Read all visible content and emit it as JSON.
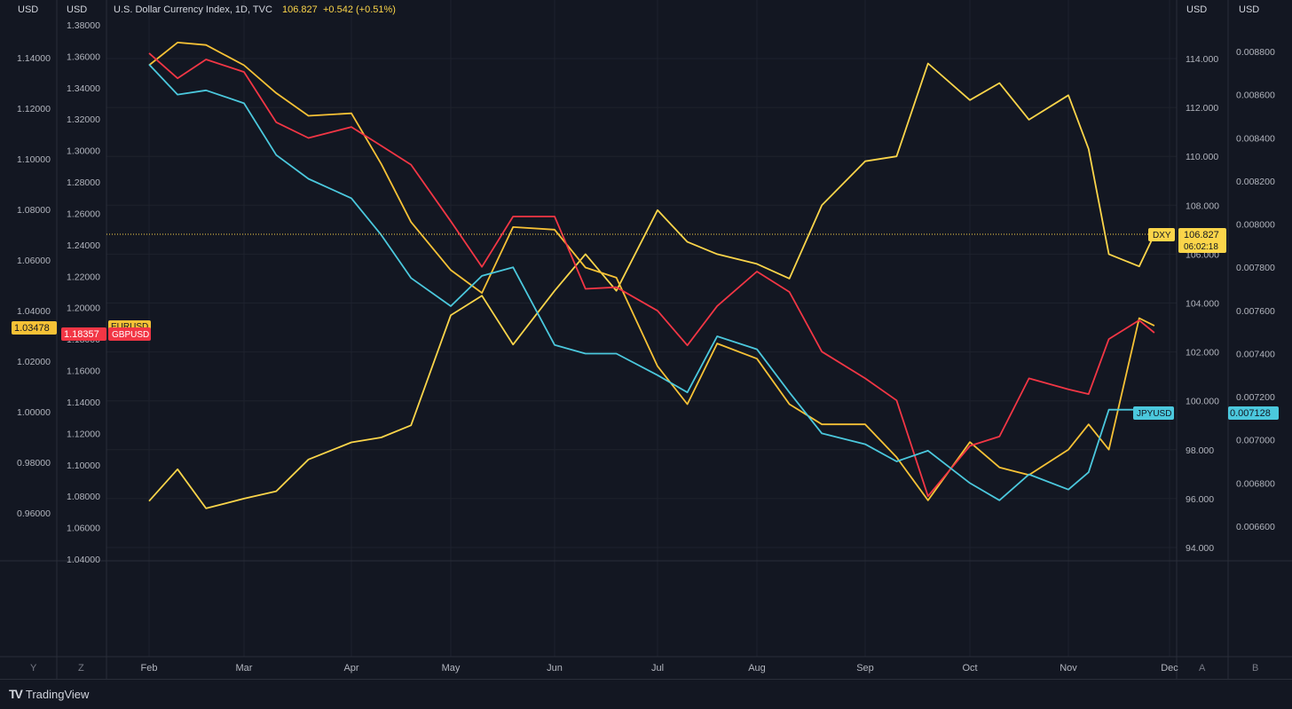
{
  "header": {
    "axis_unit_1": "USD",
    "axis_unit_2": "USD",
    "axis_unit_3": "USD",
    "axis_unit_4": "USD",
    "title": "U.S. Dollar Currency Index, 1D, TVC",
    "last": "106.827",
    "change": "+0.542 (+0.51%)"
  },
  "badges": {
    "eurusd_value": "1.03478",
    "eurusd_name": "EURUSD",
    "gbpusd_value": "1.18357",
    "gbpusd_name": "GBPUSD",
    "dxy_name": "DXY",
    "dxy_value": "106.827",
    "dxy_countdown": "06:02:18",
    "jpyusd_name": "JPYUSD",
    "jpyusd_value": "0.007128"
  },
  "scale_buttons": {
    "y": "Y",
    "z": "Z",
    "a": "A",
    "b": "B"
  },
  "footer": {
    "brand": "TradingView"
  },
  "colors": {
    "background": "#131722",
    "grid": "#1e222d",
    "dxy": "#fbd54a",
    "eurusd": "#f7c236",
    "gbpusd": "#f23645",
    "jpyusd": "#4bc8dd"
  },
  "chart_data": {
    "type": "line",
    "x_labels": [
      "Feb",
      "Mar",
      "Apr",
      "May",
      "Jun",
      "Jul",
      "Aug",
      "Sep",
      "Oct",
      "Nov",
      "Dec"
    ],
    "axes": [
      {
        "id": "eurusd",
        "unit": "USD",
        "range": [
          0.96,
          1.14
        ],
        "ticks": [
          "1.14000",
          "1.12000",
          "1.10000",
          "1.08000",
          "1.06000",
          "1.04000",
          "1.02000",
          "1.00000",
          "0.98000",
          "0.96000"
        ]
      },
      {
        "id": "gbpusd",
        "unit": "USD",
        "range": [
          1.04,
          1.38
        ],
        "ticks": [
          "1.38000",
          "1.36000",
          "1.34000",
          "1.32000",
          "1.30000",
          "1.28000",
          "1.26000",
          "1.24000",
          "1.22000",
          "1.20000",
          "1.18000",
          "1.16000",
          "1.14000",
          "1.12000",
          "1.10000",
          "1.08000",
          "1.06000",
          "1.04000"
        ]
      },
      {
        "id": "dxy",
        "unit": "USD",
        "range": [
          94,
          114
        ],
        "ticks": [
          "114.000",
          "112.000",
          "110.000",
          "108.000",
          "106.000",
          "104.000",
          "102.000",
          "100.000",
          "98.000",
          "96.000",
          "94.000"
        ]
      },
      {
        "id": "jpyusd",
        "unit": "USD",
        "range": [
          0.0066,
          0.0088
        ],
        "ticks": [
          "0.008800",
          "0.008600",
          "0.008400",
          "0.008200",
          "0.008000",
          "0.007800",
          "0.007600",
          "0.007400",
          "0.007200",
          "0.007000",
          "0.006800",
          "0.006600"
        ]
      }
    ],
    "series": [
      {
        "name": "DXY",
        "axis": "dxy",
        "color": "#fbd54a",
        "x": [
          0,
          0.3,
          0.6,
          1,
          1.3,
          1.6,
          2,
          2.3,
          2.6,
          3,
          3.3,
          3.6,
          4,
          4.3,
          4.6,
          5,
          5.3,
          5.6,
          6,
          6.3,
          6.6,
          7,
          7.3,
          7.6,
          8,
          8.3,
          8.6,
          9,
          9.2,
          9.4,
          9.7,
          9.85
        ],
        "values": [
          95.9,
          97.2,
          95.6,
          96.0,
          96.3,
          97.6,
          98.3,
          98.5,
          99.0,
          103.5,
          104.3,
          102.3,
          104.5,
          106.0,
          104.5,
          107.8,
          106.5,
          106.0,
          105.6,
          105.0,
          108.0,
          109.8,
          110.0,
          113.8,
          112.3,
          113.0,
          111.5,
          112.5,
          110.3,
          106.0,
          105.5,
          106.8
        ]
      },
      {
        "name": "EURUSD",
        "axis": "eurusd",
        "color": "#f7c236",
        "x": [
          0,
          0.3,
          0.6,
          1,
          1.3,
          1.6,
          2,
          2.3,
          2.6,
          3,
          3.3,
          3.6,
          4,
          4.3,
          4.6,
          5,
          5.3,
          5.6,
          6,
          6.3,
          6.6,
          7,
          7.3,
          7.6,
          8,
          8.3,
          8.6,
          9,
          9.2,
          9.4,
          9.7,
          9.85
        ],
        "values": [
          1.137,
          1.146,
          1.145,
          1.137,
          1.126,
          1.117,
          1.118,
          1.098,
          1.075,
          1.056,
          1.047,
          1.073,
          1.072,
          1.057,
          1.053,
          1.018,
          1.003,
          1.027,
          1.021,
          1.003,
          0.995,
          0.995,
          0.982,
          0.965,
          0.988,
          0.978,
          0.975,
          0.985,
          0.995,
          0.985,
          1.037,
          1.034
        ]
      },
      {
        "name": "GBPUSD",
        "axis": "gbpusd",
        "color": "#f23645",
        "x": [
          0,
          0.3,
          0.6,
          1,
          1.3,
          1.6,
          2,
          2.3,
          2.6,
          3,
          3.3,
          3.6,
          4,
          4.3,
          4.6,
          5,
          5.3,
          5.6,
          6,
          6.3,
          6.6,
          7,
          7.3,
          7.6,
          8,
          8.3,
          8.6,
          9,
          9.2,
          9.4,
          9.7,
          9.85
        ],
        "values": [
          1.362,
          1.346,
          1.358,
          1.35,
          1.318,
          1.308,
          1.315,
          1.303,
          1.291,
          1.255,
          1.226,
          1.258,
          1.258,
          1.212,
          1.213,
          1.198,
          1.176,
          1.201,
          1.223,
          1.21,
          1.172,
          1.155,
          1.141,
          1.08,
          1.112,
          1.118,
          1.155,
          1.148,
          1.145,
          1.18,
          1.192,
          1.184
        ]
      },
      {
        "name": "JPYUSD",
        "axis": "jpyusd",
        "color": "#4bc8dd",
        "x": [
          0,
          0.3,
          0.6,
          1,
          1.3,
          1.6,
          2,
          2.3,
          2.6,
          3,
          3.3,
          3.6,
          4,
          4.3,
          4.6,
          5,
          5.3,
          5.6,
          6,
          6.3,
          6.6,
          7,
          7.3,
          7.6,
          8,
          8.3,
          8.6,
          9,
          9.2,
          9.4,
          9.7,
          9.85
        ],
        "values": [
          0.00874,
          0.0086,
          0.00862,
          0.00856,
          0.00832,
          0.00821,
          0.00812,
          0.00795,
          0.00775,
          0.00762,
          0.00776,
          0.0078,
          0.00744,
          0.0074,
          0.0074,
          0.0073,
          0.00722,
          0.00748,
          0.00742,
          0.00722,
          0.00703,
          0.00698,
          0.0069,
          0.00695,
          0.0068,
          0.00672,
          0.00684,
          0.00677,
          0.00685,
          0.00714,
          0.00714,
          0.00713
        ]
      }
    ]
  }
}
